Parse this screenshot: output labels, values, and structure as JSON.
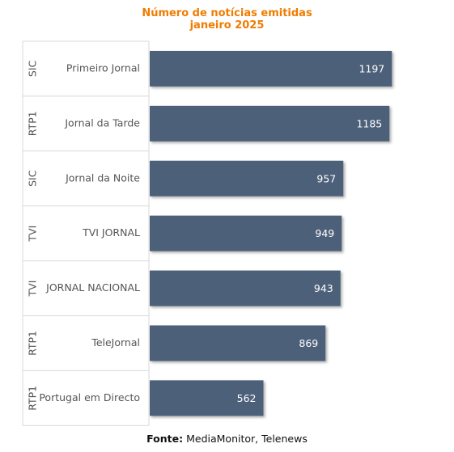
{
  "chart_data": {
    "type": "bar",
    "orientation": "horizontal",
    "title": "Número de notícias emitidas",
    "subtitle": "janeiro 2025",
    "rows": [
      {
        "group": "SIC",
        "label": "Primeiro Jornal",
        "value": 1197
      },
      {
        "group": "RTP1",
        "label": "Jornal da Tarde",
        "value": 1185
      },
      {
        "group": "SIC",
        "label": "Jornal da Noite",
        "value": 957
      },
      {
        "group": "TVI",
        "label": "TVI JORNAL",
        "value": 949
      },
      {
        "group": "TVI",
        "label": "JORNAL NACIONAL",
        "value": 943
      },
      {
        "group": "RTP1",
        "label": "TeleJornal",
        "value": 869
      },
      {
        "group": "RTP1",
        "label": "Portugal em Directo",
        "value": 562
      }
    ],
    "value_range": [
      0,
      1200
    ],
    "data_labels": "inside-end",
    "grid": false,
    "bar_color": "#4d6179",
    "label_color": "#ffffff",
    "title_color": "#f07c00"
  },
  "source": {
    "prefix": "Fonte:",
    "text": "MediaMonitor, Telenews"
  }
}
